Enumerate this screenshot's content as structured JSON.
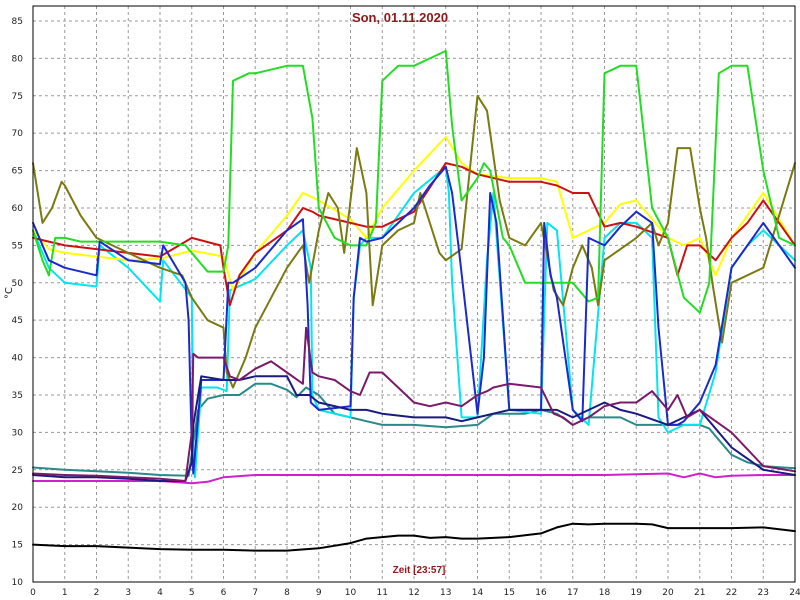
{
  "chart_data": {
    "type": "line",
    "title": "Son, 01.11.2020",
    "xlabel": "Zeit [23:57]",
    "ylabel": "°C",
    "xlim": [
      0,
      24
    ],
    "ylim": [
      10,
      87
    ],
    "xticks": [
      0,
      1,
      2,
      3,
      4,
      5,
      6,
      7,
      8,
      9,
      10,
      11,
      12,
      13,
      14,
      15,
      16,
      17,
      18,
      19,
      20,
      21,
      22,
      23,
      24
    ],
    "yticks": [
      10,
      15,
      20,
      25,
      30,
      35,
      40,
      45,
      50,
      55,
      60,
      65,
      70,
      75,
      80,
      85
    ],
    "grid": true,
    "background": "#ffffff",
    "grid_color": "#9a9a9a",
    "series": [
      {
        "color": "#000000",
        "x": [
          0,
          1,
          2,
          3,
          4,
          5,
          6,
          7,
          8,
          9,
          10,
          10.5,
          11,
          11.5,
          12,
          12.5,
          13,
          13.5,
          14,
          15,
          16,
          16.5,
          17,
          17.5,
          18,
          18.5,
          19,
          19.5,
          20,
          21,
          22,
          23,
          24
        ],
        "y": [
          15,
          14.8,
          14.8,
          14.6,
          14.4,
          14.3,
          14.3,
          14.2,
          14.2,
          14.5,
          15.2,
          15.8,
          16,
          16.2,
          16.2,
          15.9,
          16,
          15.8,
          15.8,
          16,
          16.5,
          17.3,
          17.8,
          17.7,
          17.8,
          17.8,
          17.8,
          17.7,
          17.2,
          17.2,
          17.2,
          17.3,
          16.8
        ]
      },
      {
        "color": "#cc22cc",
        "x": [
          0,
          1,
          2,
          3,
          4,
          5,
          5.5,
          6,
          7,
          8,
          9,
          10,
          12,
          14,
          16,
          17,
          18,
          19,
          20,
          20.5,
          21,
          21.5,
          22,
          23,
          24
        ],
        "y": [
          23.5,
          23.5,
          23.5,
          23.5,
          23.5,
          23.2,
          23.4,
          24,
          24.3,
          24.3,
          24.3,
          24.3,
          24.3,
          24.3,
          24.3,
          24.3,
          24.3,
          24.4,
          24.5,
          24,
          24.5,
          24,
          24.2,
          24.3,
          24.3
        ]
      },
      {
        "color": "#2a8a8a",
        "x": [
          0,
          1,
          2,
          3,
          4,
          4.9,
          5.2,
          5.5,
          6,
          6.5,
          7,
          7.5,
          8,
          8.3,
          8.6,
          9,
          9.5,
          10,
          10.5,
          11,
          12,
          13,
          14,
          14.5,
          15,
          15.5,
          16,
          16.5,
          17,
          17.5,
          18,
          18.5,
          19,
          19.5,
          20,
          20.5,
          21,
          21.3,
          21.6,
          22,
          22.5,
          23,
          24
        ],
        "y": [
          25.3,
          25,
          24.8,
          24.6,
          24.3,
          24.2,
          33,
          34.5,
          35,
          35,
          36.5,
          36.5,
          35.7,
          34.7,
          36,
          35,
          32.5,
          32,
          31.5,
          31,
          31,
          30.7,
          31,
          32.5,
          32.5,
          32.5,
          33,
          32.5,
          31,
          32,
          32,
          32,
          31,
          31,
          31,
          31,
          31,
          30.5,
          29,
          27,
          26,
          25.5,
          25.2
        ]
      },
      {
        "color": "#00e5ee",
        "x": [
          0,
          0.5,
          1,
          2,
          2.1,
          3,
          4,
          4.1,
          5,
          5.05,
          5.1,
          5.3,
          5.8,
          6.1,
          6.2,
          7,
          8,
          8.5,
          8.75,
          8.8,
          9,
          10,
          10.1,
          10.3,
          10.5,
          11,
          12,
          13,
          13.1,
          13.2,
          13.5,
          14,
          14.3,
          14.5,
          15,
          16,
          16.2,
          16.5,
          17,
          17.5,
          18,
          18.5,
          19,
          19.5,
          19.7,
          20,
          20.5,
          21,
          21.5,
          22,
          22.5,
          23,
          24
        ],
        "y": [
          57,
          52,
          50,
          49.5,
          55,
          52,
          47.5,
          53,
          48,
          28,
          24,
          36,
          36,
          35.5,
          49,
          50.5,
          55,
          57,
          52,
          35,
          33,
          32,
          48,
          55,
          56,
          56,
          62,
          65.5,
          62,
          50,
          32,
          32,
          53,
          62,
          33,
          32.5,
          58,
          57,
          33,
          31,
          56,
          58,
          58,
          56,
          32,
          30,
          31,
          31,
          38,
          52,
          55,
          57,
          53
        ]
      },
      {
        "color": "#ffff00",
        "x": [
          0,
          0.5,
          1,
          2,
          3,
          4,
          5,
          6,
          6.3,
          7,
          8,
          8.5,
          9,
          10,
          10.5,
          11,
          12,
          13,
          13.5,
          14,
          15,
          16,
          16.5,
          17,
          18,
          18.5,
          19,
          20,
          20.5,
          21,
          21.5,
          22,
          22.5,
          23,
          24
        ],
        "y": [
          57,
          54.5,
          54,
          53.5,
          53,
          53.2,
          54.3,
          53.5,
          49,
          54,
          59,
          62,
          61,
          58.5,
          56,
          60,
          65,
          69.5,
          66,
          64.5,
          64,
          64,
          63.5,
          56,
          58,
          60.5,
          61,
          56,
          55,
          56,
          51,
          56,
          59,
          62,
          55
        ]
      },
      {
        "color": "#cc1111",
        "x": [
          0,
          0.5,
          1,
          2,
          3,
          4,
          5,
          5.9,
          6,
          6.2,
          6.5,
          7,
          8,
          8.5,
          8.8,
          9,
          10,
          10.5,
          11,
          12,
          13,
          13.5,
          14,
          15,
          16,
          16.5,
          17,
          17.5,
          18,
          18.5,
          19,
          20,
          20.3,
          20.6,
          21,
          21.5,
          22,
          22.5,
          23,
          24
        ],
        "y": [
          56,
          55.5,
          55,
          54.5,
          54,
          53.5,
          56,
          55,
          52,
          47,
          51,
          54,
          57,
          60,
          59.5,
          59,
          58,
          57.5,
          57.5,
          59.5,
          66,
          65.5,
          64.5,
          63.5,
          63.5,
          63,
          62,
          62,
          57.5,
          58,
          57.5,
          56,
          51,
          55,
          55,
          53,
          56,
          58,
          61,
          55
        ]
      },
      {
        "color": "#7a7a10",
        "x": [
          0,
          0.3,
          0.6,
          0.9,
          1,
          1.5,
          2,
          3,
          4,
          4.7,
          5,
          5.5,
          6,
          6.1,
          6.3,
          6.7,
          7,
          8,
          8.5,
          8.7,
          9,
          9.3,
          9.6,
          9.8,
          10,
          10.2,
          10.5,
          10.7,
          11,
          11.5,
          12,
          12.2,
          12.8,
          13,
          13.5,
          14,
          14.3,
          14.7,
          15,
          15.5,
          16,
          16.4,
          16.7,
          17,
          17.3,
          17.6,
          17.8,
          18,
          19,
          19.5,
          19.7,
          20,
          20.3,
          20.7,
          21,
          21.2,
          21.4,
          21.7,
          22,
          23,
          24
        ],
        "y": [
          66,
          58,
          60,
          63.5,
          63,
          59,
          56,
          54,
          52,
          51,
          48,
          45,
          44,
          38,
          36,
          40,
          44,
          52,
          55,
          50,
          57,
          62,
          60,
          54,
          61,
          68,
          62,
          47,
          55,
          57,
          58,
          62,
          54,
          53,
          54.5,
          75,
          73,
          61,
          56,
          55,
          58,
          49,
          47,
          52,
          55,
          52,
          47,
          53,
          56,
          58,
          55,
          58,
          68,
          68,
          60,
          56,
          50,
          42,
          50,
          52,
          66
        ]
      },
      {
        "color": "#22dd22",
        "x": [
          0,
          0.3,
          0.5,
          0.7,
          1,
          1.5,
          2,
          3,
          4,
          4.8,
          5,
          5.5,
          6,
          6.15,
          6.3,
          6.8,
          7,
          8,
          8.5,
          8.8,
          9,
          9.5,
          10,
          10.5,
          10.8,
          11,
          11.5,
          12,
          12.5,
          13,
          13.2,
          13.5,
          14,
          14.2,
          14.4,
          14.8,
          15,
          15.5,
          16,
          16.5,
          17,
          17.5,
          17.8,
          18,
          18.5,
          19,
          19.5,
          20,
          20.5,
          21,
          21.3,
          21.6,
          22,
          22.5,
          23,
          23.5,
          24
        ],
        "y": [
          57,
          53,
          51,
          56,
          56,
          55.5,
          55.5,
          55.5,
          55.5,
          55,
          54,
          51.5,
          51.5,
          55,
          77,
          78,
          78,
          79,
          79,
          72,
          60,
          56,
          55,
          55,
          58,
          77,
          79,
          79,
          80,
          81,
          71,
          61,
          64,
          66,
          65,
          56,
          55,
          50,
          50,
          50,
          50,
          47.5,
          48,
          78,
          79,
          79,
          60,
          56,
          48,
          46,
          50,
          78,
          79,
          79,
          65,
          56,
          55
        ]
      },
      {
        "color": "#1a2acc",
        "x": [
          0,
          0.5,
          1,
          2,
          2.1,
          3,
          4,
          4.1,
          4.8,
          4.9,
          5,
          5.05,
          5.3,
          6,
          6.15,
          6.3,
          7,
          8,
          8.5,
          8.65,
          8.75,
          9,
          10,
          10.1,
          10.3,
          10.5,
          11,
          12,
          12.5,
          13,
          13.2,
          13.4,
          14,
          14.2,
          14.4,
          14.6,
          15,
          16,
          16.1,
          16.3,
          16.5,
          17,
          17.3,
          17.5,
          18,
          18.5,
          19,
          19.5,
          19.7,
          20,
          20.3,
          20.5,
          21,
          21.5,
          22,
          22.5,
          23,
          24
        ],
        "y": [
          58,
          53,
          52,
          51,
          55.5,
          53,
          52.5,
          55,
          50,
          45,
          28,
          24.5,
          37,
          37,
          50,
          50,
          52,
          57,
          58.5,
          47,
          34,
          33,
          33.5,
          48,
          56,
          55.5,
          56,
          60,
          63,
          65.5,
          62,
          55,
          32.5,
          40,
          62,
          58,
          33,
          33,
          58,
          51,
          48,
          33,
          31.5,
          56,
          55,
          57.5,
          59.5,
          58,
          44,
          31,
          31,
          31.5,
          34,
          39,
          52,
          55,
          58,
          52
        ]
      },
      {
        "color": "#1a1a80",
        "x": [
          0,
          1,
          2,
          3,
          4,
          4.8,
          5,
          5.05,
          5.3,
          6,
          6.5,
          7,
          8,
          8.3,
          8.7,
          9,
          10,
          10.5,
          11,
          12,
          13,
          13.5,
          14,
          15,
          16,
          16.5,
          17,
          18,
          18.5,
          19,
          20,
          20.5,
          21,
          21.5,
          22,
          23,
          24
        ],
        "y": [
          24.3,
          24,
          24,
          23.8,
          23.5,
          23.5,
          26,
          31,
          37.5,
          37,
          37,
          37.5,
          37.5,
          35,
          35,
          34,
          33,
          33,
          32.5,
          32,
          32,
          31.5,
          32,
          33,
          33,
          33,
          32,
          34,
          33,
          32.5,
          31,
          32,
          33,
          30.5,
          28,
          25,
          24.3
        ]
      },
      {
        "color": "#7a1a6a",
        "x": [
          0,
          1,
          2,
          3,
          4,
          4.8,
          5,
          5.05,
          5.2,
          5.5,
          6,
          6.2,
          6.5,
          7,
          7.5,
          8,
          8.5,
          8.6,
          8.8,
          9,
          9.5,
          10,
          10.3,
          10.6,
          11,
          12,
          12.5,
          13,
          13.5,
          14,
          14.3,
          14.5,
          15,
          16,
          16.4,
          16.7,
          17,
          17.5,
          18,
          18.5,
          19,
          19.5,
          20,
          20.3,
          20.6,
          21,
          22,
          23,
          24
        ],
        "y": [
          24.5,
          24.3,
          24.2,
          24,
          23.8,
          23.5,
          30,
          40.5,
          40,
          40,
          40,
          37.5,
          37,
          38.5,
          39.5,
          38,
          36.5,
          44,
          38,
          37.5,
          37,
          35.5,
          35,
          38,
          38,
          34,
          33.5,
          34,
          33.5,
          35,
          35.5,
          36,
          36.5,
          36,
          32.5,
          32,
          31,
          32,
          33.5,
          34,
          34,
          35.5,
          33,
          35,
          32,
          33,
          30,
          25.5,
          24.8
        ]
      }
    ]
  }
}
